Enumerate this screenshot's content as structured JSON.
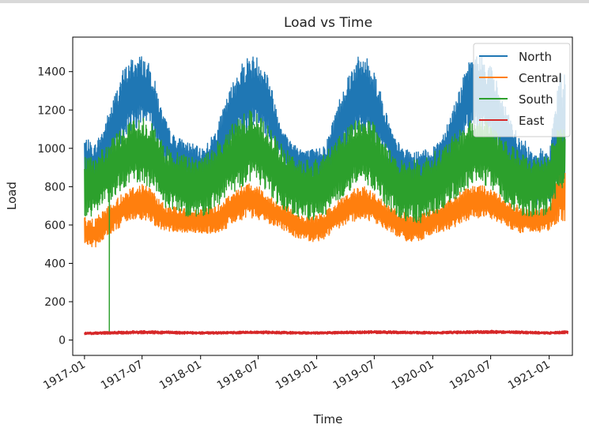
{
  "chart_data": {
    "type": "line",
    "title": "Load vs Time",
    "xlabel": "Time",
    "ylabel": "Load",
    "x_range": [
      "1916-11-25",
      "1921-03-15"
    ],
    "ylim": [
      -80,
      1580
    ],
    "y_ticks": [
      0,
      200,
      400,
      600,
      800,
      1000,
      1200,
      1400
    ],
    "x_ticks": [
      "1917-01",
      "1917-07",
      "1918-01",
      "1918-07",
      "1919-01",
      "1919-07",
      "1920-01",
      "1920-07",
      "1921-01"
    ],
    "grid": false,
    "legend_position": "top-right",
    "series": [
      {
        "name": "North",
        "color": "#1f77b4",
        "dates": [
          "1917-01-01",
          "1917-02-01",
          "1917-03-01",
          "1917-04-01",
          "1917-05-01",
          "1917-06-01",
          "1917-07-01",
          "1917-08-01",
          "1917-09-01",
          "1917-10-01",
          "1917-11-01",
          "1917-12-01",
          "1918-01-01",
          "1918-02-01",
          "1918-03-01",
          "1918-04-01",
          "1918-05-01",
          "1918-06-01",
          "1918-07-01",
          "1918-08-01",
          "1918-09-01",
          "1918-10-01",
          "1918-11-01",
          "1918-12-01",
          "1919-01-01",
          "1919-02-01",
          "1919-03-01",
          "1919-04-01",
          "1919-05-01",
          "1919-06-01",
          "1919-07-01",
          "1919-08-01",
          "1919-09-01",
          "1919-10-01",
          "1919-11-01",
          "1919-12-01",
          "1920-01-01",
          "1920-02-01",
          "1920-03-01",
          "1920-04-01",
          "1920-05-01",
          "1920-06-01",
          "1920-07-01",
          "1920-08-01",
          "1920-09-01",
          "1920-10-01",
          "1920-11-01",
          "1920-12-01",
          "1921-01-01",
          "1921-02-01"
        ],
        "low": [
          820,
          790,
          860,
          950,
          1040,
          1090,
          1120,
          1070,
          960,
          870,
          830,
          810,
          800,
          820,
          870,
          960,
          1040,
          1080,
          1100,
          1050,
          960,
          880,
          830,
          810,
          800,
          790,
          880,
          990,
          1070,
          1080,
          1030,
          960,
          880,
          810,
          780,
          790,
          800,
          860,
          930,
          1030,
          1100,
          1090,
          1020,
          930,
          820,
          760,
          720,
          700,
          720,
          760
        ],
        "high": [
          1060,
          1020,
          1110,
          1260,
          1410,
          1480,
          1490,
          1420,
          1200,
          1080,
          1050,
          1030,
          1000,
          1050,
          1150,
          1300,
          1430,
          1490,
          1480,
          1400,
          1180,
          1060,
          1020,
          990,
          1000,
          1040,
          1200,
          1360,
          1470,
          1490,
          1420,
          1230,
          1060,
          1000,
          980,
          990,
          1000,
          1080,
          1200,
          1350,
          1480,
          1490,
          1440,
          1300,
          1150,
          1060,
          1020,
          1000,
          1000,
          1400
        ]
      },
      {
        "name": "Central",
        "color": "#ff7f0e",
        "dates": [
          "1917-01-01",
          "1917-02-01",
          "1917-03-01",
          "1917-04-01",
          "1917-05-01",
          "1917-06-01",
          "1917-07-01",
          "1917-08-01",
          "1917-09-01",
          "1917-10-01",
          "1917-11-01",
          "1917-12-01",
          "1918-01-01",
          "1918-02-01",
          "1918-03-01",
          "1918-04-01",
          "1918-05-01",
          "1918-06-01",
          "1918-07-01",
          "1918-08-01",
          "1918-09-01",
          "1918-10-01",
          "1918-11-01",
          "1918-12-01",
          "1919-01-01",
          "1919-02-01",
          "1919-03-01",
          "1919-04-01",
          "1919-05-01",
          "1919-06-01",
          "1919-07-01",
          "1919-08-01",
          "1919-09-01",
          "1919-10-01",
          "1919-11-01",
          "1919-12-01",
          "1920-01-01",
          "1920-02-01",
          "1920-03-01",
          "1920-04-01",
          "1920-05-01",
          "1920-06-01",
          "1920-07-01",
          "1920-08-01",
          "1920-09-01",
          "1920-10-01",
          "1920-11-01",
          "1920-12-01",
          "1921-01-01",
          "1921-02-01"
        ],
        "low": [
          500,
          480,
          520,
          560,
          600,
          620,
          630,
          610,
          570,
          560,
          560,
          560,
          550,
          550,
          560,
          590,
          620,
          640,
          630,
          610,
          590,
          560,
          530,
          520,
          510,
          530,
          570,
          600,
          620,
          630,
          610,
          580,
          550,
          520,
          510,
          520,
          550,
          560,
          580,
          610,
          630,
          640,
          630,
          610,
          580,
          560,
          560,
          560,
          570,
          620
        ],
        "high": [
          640,
          630,
          680,
          720,
          770,
          800,
          820,
          790,
          720,
          700,
          690,
          680,
          690,
          700,
          710,
          760,
          800,
          830,
          810,
          760,
          720,
          700,
          660,
          640,
          650,
          680,
          720,
          760,
          790,
          800,
          770,
          720,
          690,
          670,
          650,
          660,
          700,
          720,
          740,
          780,
          800,
          810,
          790,
          760,
          720,
          700,
          690,
          680,
          700,
          890
        ]
      },
      {
        "name": "South",
        "color": "#2ca02c",
        "dates": [
          "1917-01-01",
          "1917-02-01",
          "1917-03-01",
          "1917-04-01",
          "1917-05-01",
          "1917-06-01",
          "1917-07-01",
          "1917-08-01",
          "1917-09-01",
          "1917-10-01",
          "1917-11-01",
          "1917-12-01",
          "1918-01-01",
          "1918-02-01",
          "1918-03-01",
          "1918-04-01",
          "1918-05-01",
          "1918-06-01",
          "1918-07-01",
          "1918-08-01",
          "1918-09-01",
          "1918-10-01",
          "1918-11-01",
          "1918-12-01",
          "1919-01-01",
          "1919-02-01",
          "1919-03-01",
          "1919-04-01",
          "1919-05-01",
          "1919-06-01",
          "1919-07-01",
          "1919-08-01",
          "1919-09-01",
          "1919-10-01",
          "1919-11-01",
          "1919-12-01",
          "1920-01-01",
          "1920-02-01",
          "1920-03-01",
          "1920-04-01",
          "1920-05-01",
          "1920-06-01",
          "1920-07-01",
          "1920-08-01",
          "1920-09-01",
          "1920-10-01",
          "1920-11-01",
          "1920-12-01",
          "1921-01-01",
          "1921-02-01"
        ],
        "low": [
          640,
          640,
          700,
          740,
          790,
          810,
          820,
          790,
          700,
          670,
          650,
          640,
          640,
          660,
          700,
          750,
          790,
          820,
          810,
          770,
          700,
          660,
          640,
          620,
          620,
          650,
          700,
          760,
          800,
          810,
          780,
          700,
          650,
          610,
          600,
          610,
          640,
          680,
          720,
          760,
          800,
          810,
          790,
          740,
          690,
          650,
          640,
          640,
          660,
          780
        ],
        "high": [
          960,
          960,
          1000,
          1060,
          1110,
          1150,
          1170,
          1140,
          1040,
          990,
          970,
          960,
          960,
          990,
          1050,
          1110,
          1160,
          1200,
          1180,
          1120,
          1040,
          990,
          960,
          950,
          950,
          980,
          1050,
          1110,
          1150,
          1170,
          1130,
          1040,
          980,
          950,
          940,
          950,
          980,
          1010,
          1060,
          1110,
          1150,
          1160,
          1140,
          1080,
          1020,
          980,
          960,
          960,
          990,
          1120
        ],
        "dip": {
          "date": "1917-03-20",
          "value": 40
        }
      },
      {
        "name": "East",
        "color": "#d62728",
        "dates": [
          "1917-01-01",
          "1917-07-01",
          "1918-01-01",
          "1918-07-01",
          "1919-01-01",
          "1919-07-01",
          "1920-01-01",
          "1920-07-01",
          "1921-01-01",
          "1921-03-01"
        ],
        "low": [
          28,
          32,
          30,
          32,
          30,
          33,
          31,
          34,
          30,
          32
        ],
        "high": [
          42,
          50,
          44,
          48,
          44,
          50,
          45,
          52,
          44,
          50
        ]
      }
    ]
  }
}
